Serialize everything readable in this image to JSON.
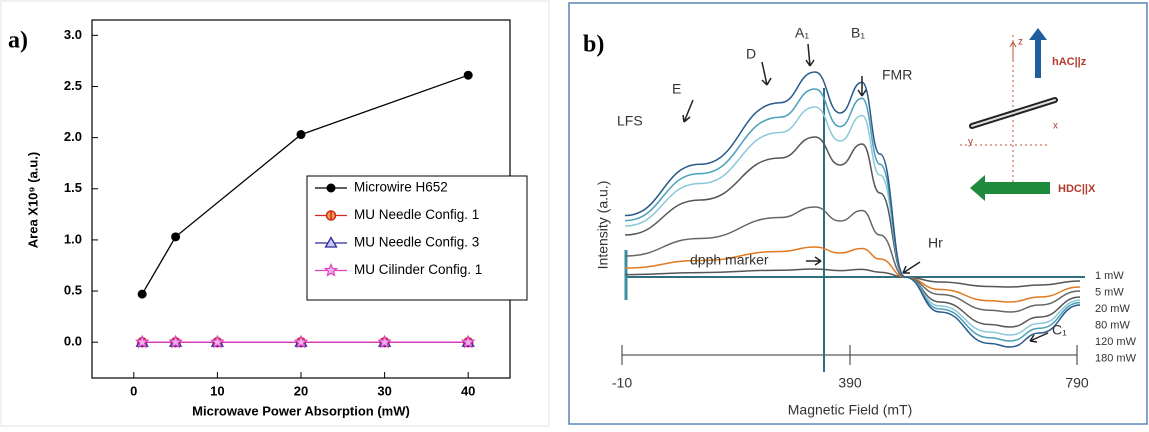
{
  "chart_data": {
    "type": "line",
    "panel_label": "a)",
    "xlabel": "Microwave Power Absorption (mW)",
    "ylabel": "Area X10⁹ (a.u.)",
    "xlim": [
      -5,
      45
    ],
    "xticks": [
      0,
      10,
      20,
      30,
      40
    ],
    "ylim": [
      -0.35,
      3.15
    ],
    "yticks": [
      {
        "value": 0,
        "label": "0.0"
      },
      {
        "value": 0.5,
        "label": "0.5"
      },
      {
        "value": 1,
        "label": "1.0"
      },
      {
        "value": 1.5,
        "label": "1.5"
      },
      {
        "value": 2,
        "label": "2.0"
      },
      {
        "value": 2.5,
        "label": "2.5"
      },
      {
        "value": 3,
        "label": "3.0"
      }
    ],
    "series": [
      {
        "name": "Microwire H652",
        "color": "#000000",
        "marker": "circle",
        "x": [
          1,
          5,
          20,
          40
        ],
        "values": [
          0.47,
          1.03,
          2.03,
          2.61
        ]
      },
      {
        "name": "MU Needle Config. 1",
        "color": "#d22a1e",
        "marker": "half-circle",
        "x": [
          1,
          5,
          10,
          20,
          30,
          40
        ],
        "values": [
          0,
          0,
          0,
          0,
          0,
          0
        ]
      },
      {
        "name": "MU Needle Config. 3",
        "color": "#2b2b9e",
        "marker": "triangle",
        "x": [
          1,
          5,
          10,
          20,
          30,
          40
        ],
        "values": [
          0,
          0,
          0,
          0,
          0,
          0
        ]
      },
      {
        "name": "MU Cilinder Config. 1",
        "color": "#e040c0",
        "marker": "star",
        "x": [
          1,
          5,
          10,
          20,
          30,
          40
        ],
        "values": [
          0,
          0,
          0,
          0,
          0,
          0
        ]
      }
    ]
  },
  "panel_b": {
    "label": "b)",
    "ylabel": "Intensity (a.u.)",
    "xlabel": "Magnetic Field (mT)",
    "xticks": [
      -10,
      390,
      790
    ],
    "annotations": {
      "lfs": "LFS",
      "e": "E",
      "d": "D",
      "a1": "A₁",
      "b1": "B₁",
      "fmr": "FMR",
      "hr": "Hr",
      "dpph": "dpph marker",
      "c1": "C₁"
    },
    "power_labels": [
      "1 mW",
      "5 mW",
      "20 mW",
      "80 mW",
      "120 mW",
      "180 mW"
    ],
    "inset": {
      "z": "z",
      "x": "x",
      "y": "y",
      "h_ac": "hAC||z",
      "h_dc": "HDC||X"
    }
  }
}
